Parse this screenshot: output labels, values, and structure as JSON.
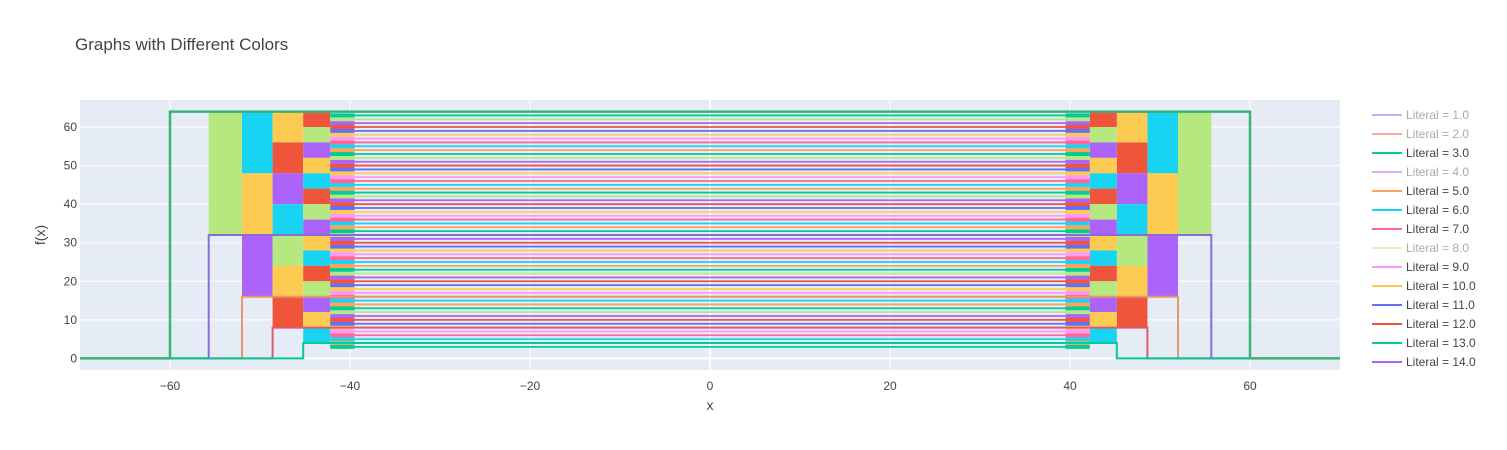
{
  "chart_data": {
    "type": "line",
    "title": "Graphs with Different Colors",
    "xlabel": "x",
    "ylabel": "f(x)",
    "xlim": [
      -70,
      70
    ],
    "ylim": [
      -3,
      67
    ],
    "xticks": [
      -60,
      -40,
      -20,
      0,
      20,
      40,
      60
    ],
    "xtick_labels": [
      "−60",
      "−40",
      "−20",
      "0",
      "20",
      "40",
      "60"
    ],
    "yticks": [
      0,
      10,
      20,
      30,
      40,
      50,
      60
    ],
    "ytick_labels": [
      "0",
      "10",
      "20",
      "30",
      "40",
      "50",
      "60"
    ],
    "grid": true,
    "legend_position": "right",
    "plot_background": "#e5ecf6",
    "series": [
      {
        "name": "Literal = 1.0",
        "color": "#636efa",
        "visible": false
      },
      {
        "name": "Literal = 2.0",
        "color": "#ef553b",
        "visible": false
      },
      {
        "name": "Literal = 3.0",
        "color": "#00cc96",
        "visible": true
      },
      {
        "name": "Literal = 4.0",
        "color": "#ab63fa",
        "visible": false
      },
      {
        "name": "Literal = 5.0",
        "color": "#ffa15a",
        "visible": true
      },
      {
        "name": "Literal = 6.0",
        "color": "#19d3f3",
        "visible": true
      },
      {
        "name": "Literal = 7.0",
        "color": "#ff6692",
        "visible": true
      },
      {
        "name": "Literal = 8.0",
        "color": "#b6e880",
        "visible": false
      },
      {
        "name": "Literal = 9.0",
        "color": "#ff97ff",
        "visible": true
      },
      {
        "name": "Literal = 10.0",
        "color": "#fecb52",
        "visible": true
      },
      {
        "name": "Literal = 11.0",
        "color": "#636efa",
        "visible": true
      },
      {
        "name": "Literal = 12.0",
        "color": "#ef553b",
        "visible": true
      },
      {
        "name": "Literal = 13.0",
        "color": "#00cc96",
        "visible": true
      },
      {
        "name": "Literal = 14.0",
        "color": "#ab63fa",
        "visible": true
      }
    ],
    "outer_step": {
      "color": "#3cb371",
      "x": [
        -70,
        -60,
        -60,
        60,
        60,
        70
      ],
      "y": [
        0,
        0,
        64,
        64,
        0,
        0
      ]
    },
    "steps": [
      {
        "color": "#8a6cd8",
        "x": [
          -70,
          -55.7,
          -55.7,
          55.7,
          55.7,
          70
        ],
        "y": [
          0,
          0,
          32,
          32,
          0,
          0
        ]
      },
      {
        "color": "#e39a6a",
        "x": [
          -70,
          -52,
          -52,
          52,
          52,
          70
        ],
        "y": [
          0,
          0,
          16,
          16,
          0,
          0
        ]
      },
      {
        "color": "#e05a6e",
        "x": [
          -70,
          -48.6,
          -48.6,
          48.6,
          48.6,
          70
        ],
        "y": [
          0,
          0,
          8,
          8,
          0,
          0
        ]
      },
      {
        "color": "#00cc96",
        "x": [
          -70,
          -45.2,
          -45.2,
          45.2,
          45.2,
          70
        ],
        "y": [
          0,
          0,
          4,
          4,
          0,
          0
        ]
      }
    ],
    "blocks": [
      {
        "x0": -55.7,
        "x1": -52,
        "y0": 32,
        "y1": 64,
        "color": "#b6e880"
      },
      {
        "x0": -52,
        "x1": -48.6,
        "y0": 48,
        "y1": 64,
        "color": "#19d3f3"
      },
      {
        "x0": -52,
        "x1": -48.6,
        "y0": 32,
        "y1": 48,
        "color": "#fecb52"
      },
      {
        "x0": -52,
        "x1": -48.6,
        "y0": 16,
        "y1": 32,
        "color": "#ab63fa"
      },
      {
        "x0": -48.6,
        "x1": -45.2,
        "y0": 56,
        "y1": 64,
        "color": "#fecb52"
      },
      {
        "x0": -48.6,
        "x1": -45.2,
        "y0": 48,
        "y1": 56,
        "color": "#ef553b"
      },
      {
        "x0": -48.6,
        "x1": -45.2,
        "y0": 40,
        "y1": 48,
        "color": "#ab63fa"
      },
      {
        "x0": -48.6,
        "x1": -45.2,
        "y0": 32,
        "y1": 40,
        "color": "#19d3f3"
      },
      {
        "x0": -48.6,
        "x1": -45.2,
        "y0": 24,
        "y1": 32,
        "color": "#b6e880"
      },
      {
        "x0": -48.6,
        "x1": -45.2,
        "y0": 16,
        "y1": 24,
        "color": "#fecb52"
      },
      {
        "x0": -48.6,
        "x1": -45.2,
        "y0": 8,
        "y1": 16,
        "color": "#ef553b"
      },
      {
        "x0": -45.2,
        "x1": -42.2,
        "y0": 60,
        "y1": 64,
        "color": "#ef553b"
      },
      {
        "x0": -45.2,
        "x1": -42.2,
        "y0": 56,
        "y1": 60,
        "color": "#b6e880"
      },
      {
        "x0": -45.2,
        "x1": -42.2,
        "y0": 52,
        "y1": 56,
        "color": "#ab63fa"
      },
      {
        "x0": -45.2,
        "x1": -42.2,
        "y0": 48,
        "y1": 52,
        "color": "#fecb52"
      },
      {
        "x0": -45.2,
        "x1": -42.2,
        "y0": 44,
        "y1": 48,
        "color": "#19d3f3"
      },
      {
        "x0": -45.2,
        "x1": -42.2,
        "y0": 40,
        "y1": 44,
        "color": "#ef553b"
      },
      {
        "x0": -45.2,
        "x1": -42.2,
        "y0": 36,
        "y1": 40,
        "color": "#b6e880"
      },
      {
        "x0": -45.2,
        "x1": -42.2,
        "y0": 32,
        "y1": 36,
        "color": "#ab63fa"
      },
      {
        "x0": -45.2,
        "x1": -42.2,
        "y0": 28,
        "y1": 32,
        "color": "#fecb52"
      },
      {
        "x0": -45.2,
        "x1": -42.2,
        "y0": 24,
        "y1": 28,
        "color": "#19d3f3"
      },
      {
        "x0": -45.2,
        "x1": -42.2,
        "y0": 20,
        "y1": 24,
        "color": "#ef553b"
      },
      {
        "x0": -45.2,
        "x1": -42.2,
        "y0": 16,
        "y1": 20,
        "color": "#b6e880"
      },
      {
        "x0": -45.2,
        "x1": -42.2,
        "y0": 12,
        "y1": 16,
        "color": "#ab63fa"
      },
      {
        "x0": -45.2,
        "x1": -42.2,
        "y0": 8,
        "y1": 12,
        "color": "#fecb52"
      },
      {
        "x0": -45.2,
        "x1": -42.2,
        "y0": 4,
        "y1": 8,
        "color": "#19d3f3"
      },
      {
        "x0": 52,
        "x1": 55.7,
        "y0": 32,
        "y1": 64,
        "color": "#b6e880"
      },
      {
        "x0": 48.6,
        "x1": 52,
        "y0": 48,
        "y1": 64,
        "color": "#19d3f3"
      },
      {
        "x0": 48.6,
        "x1": 52,
        "y0": 32,
        "y1": 48,
        "color": "#fecb52"
      },
      {
        "x0": 48.6,
        "x1": 52,
        "y0": 16,
        "y1": 32,
        "color": "#ab63fa"
      },
      {
        "x0": 45.2,
        "x1": 48.6,
        "y0": 56,
        "y1": 64,
        "color": "#fecb52"
      },
      {
        "x0": 45.2,
        "x1": 48.6,
        "y0": 48,
        "y1": 56,
        "color": "#ef553b"
      },
      {
        "x0": 45.2,
        "x1": 48.6,
        "y0": 40,
        "y1": 48,
        "color": "#ab63fa"
      },
      {
        "x0": 45.2,
        "x1": 48.6,
        "y0": 32,
        "y1": 40,
        "color": "#19d3f3"
      },
      {
        "x0": 45.2,
        "x1": 48.6,
        "y0": 24,
        "y1": 32,
        "color": "#b6e880"
      },
      {
        "x0": 45.2,
        "x1": 48.6,
        "y0": 16,
        "y1": 24,
        "color": "#fecb52"
      },
      {
        "x0": 45.2,
        "x1": 48.6,
        "y0": 8,
        "y1": 16,
        "color": "#ef553b"
      },
      {
        "x0": 42.2,
        "x1": 45.2,
        "y0": 60,
        "y1": 64,
        "color": "#ef553b"
      },
      {
        "x0": 42.2,
        "x1": 45.2,
        "y0": 56,
        "y1": 60,
        "color": "#b6e880"
      },
      {
        "x0": 42.2,
        "x1": 45.2,
        "y0": 52,
        "y1": 56,
        "color": "#ab63fa"
      },
      {
        "x0": 42.2,
        "x1": 45.2,
        "y0": 48,
        "y1": 52,
        "color": "#fecb52"
      },
      {
        "x0": 42.2,
        "x1": 45.2,
        "y0": 44,
        "y1": 48,
        "color": "#19d3f3"
      },
      {
        "x0": 42.2,
        "x1": 45.2,
        "y0": 40,
        "y1": 44,
        "color": "#ef553b"
      },
      {
        "x0": 42.2,
        "x1": 45.2,
        "y0": 36,
        "y1": 40,
        "color": "#b6e880"
      },
      {
        "x0": 42.2,
        "x1": 45.2,
        "y0": 32,
        "y1": 36,
        "color": "#ab63fa"
      },
      {
        "x0": 42.2,
        "x1": 45.2,
        "y0": 28,
        "y1": 32,
        "color": "#fecb52"
      },
      {
        "x0": 42.2,
        "x1": 45.2,
        "y0": 24,
        "y1": 28,
        "color": "#19d3f3"
      },
      {
        "x0": 42.2,
        "x1": 45.2,
        "y0": 20,
        "y1": 24,
        "color": "#ef553b"
      },
      {
        "x0": 42.2,
        "x1": 45.2,
        "y0": 16,
        "y1": 20,
        "color": "#b6e880"
      },
      {
        "x0": 42.2,
        "x1": 45.2,
        "y0": 12,
        "y1": 16,
        "color": "#ab63fa"
      },
      {
        "x0": 42.2,
        "x1": 45.2,
        "y0": 8,
        "y1": 12,
        "color": "#fecb52"
      },
      {
        "x0": 42.2,
        "x1": 45.2,
        "y0": 4,
        "y1": 8,
        "color": "#19d3f3"
      }
    ],
    "stripe_band": {
      "x0": -42.2,
      "x1": 42.2,
      "inner_x0": -39.5,
      "inner_x1": 39.5,
      "y_from": 3,
      "y_to": 63,
      "levels": 61
    },
    "stripe_palette": [
      "#00cc96",
      "#ffa15a",
      "#19d3f3",
      "#ff6692",
      "#ff97ff",
      "#fecb52",
      "#636efa",
      "#ef553b",
      "#ab63fa",
      "#b6e880"
    ]
  }
}
